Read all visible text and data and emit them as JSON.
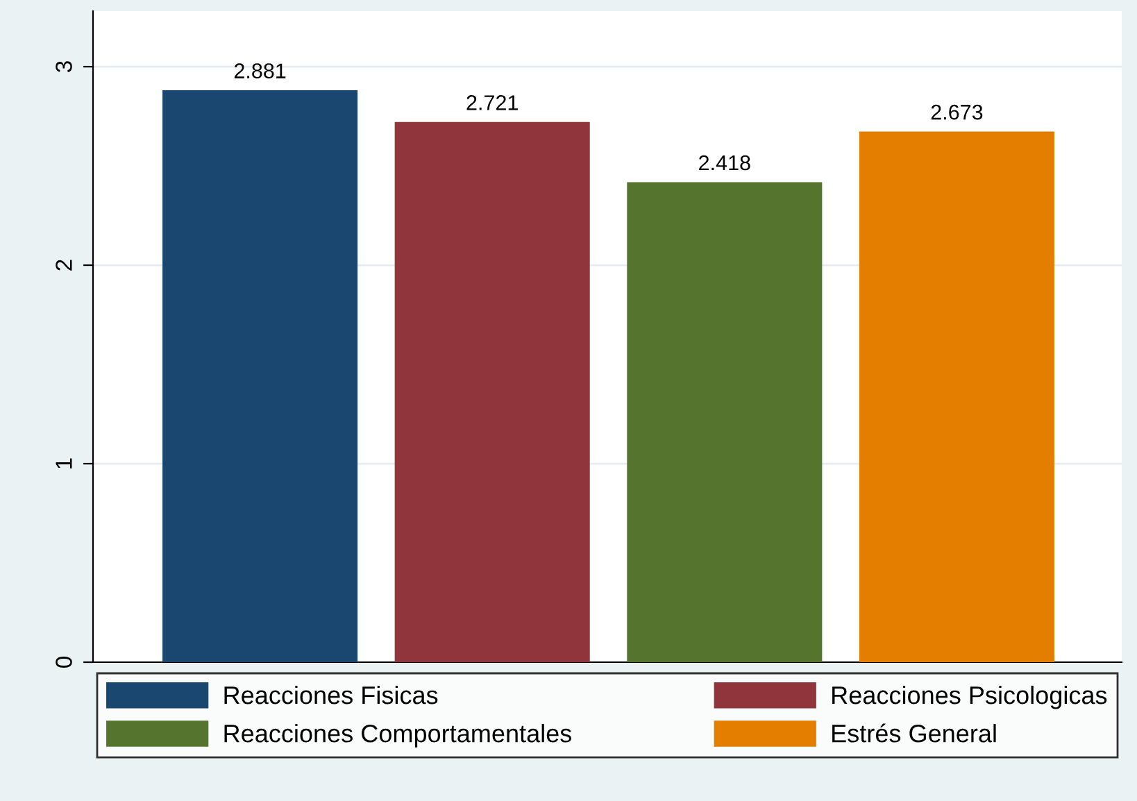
{
  "chart_data": {
    "type": "bar",
    "categories": [
      null,
      null,
      null,
      null
    ],
    "series": [
      {
        "name": "Reacciones Fisicas",
        "color": "#1a476f",
        "values": [
          2.881,
          null,
          null,
          null
        ]
      },
      {
        "name": "Reacciones Psicologicas",
        "color": "#90353b",
        "values": [
          null,
          2.721,
          null,
          null
        ]
      },
      {
        "name": "Reacciones Comportamentales",
        "color": "#55752f",
        "values": [
          null,
          null,
          2.418,
          null
        ]
      },
      {
        "name": "Estrés General",
        "color": "#e37e00",
        "values": [
          null,
          null,
          null,
          2.673
        ]
      }
    ],
    "ylim": [
      0,
      3.28
    ],
    "yticks": [
      0,
      1,
      2,
      3
    ],
    "grid": "y",
    "legend": "bottom",
    "data_labels": true
  }
}
